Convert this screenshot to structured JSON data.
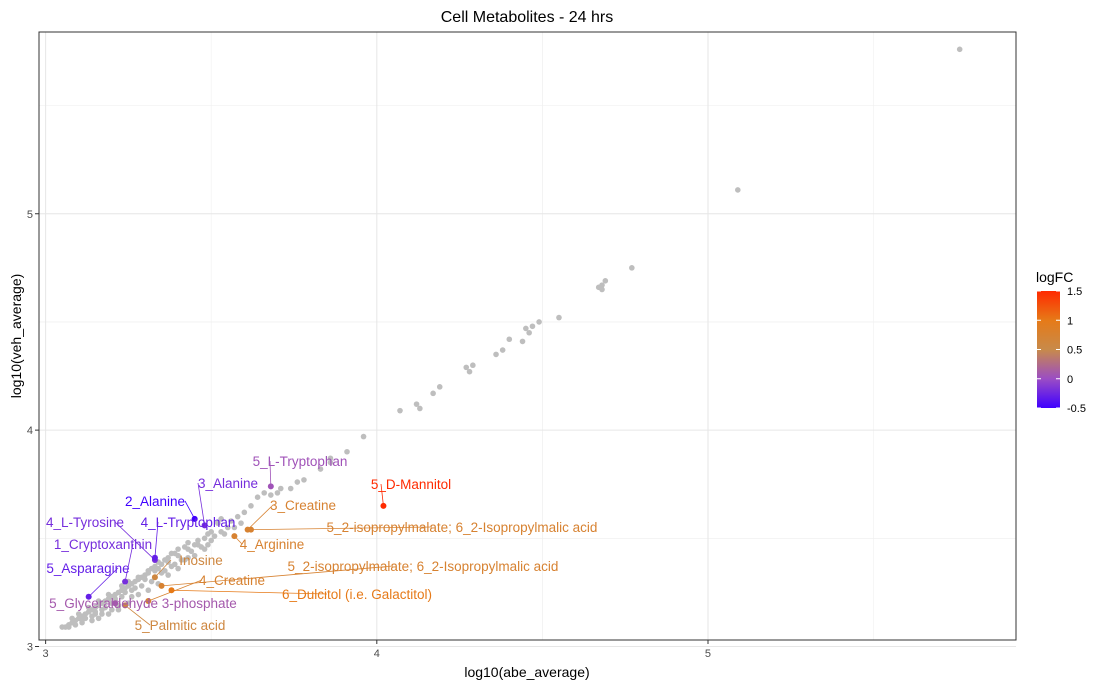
{
  "chart_data": {
    "type": "scatter",
    "title": "Cell Metabolites - 24 hrs",
    "xlabel": "log10(abe_average)",
    "ylabel": "log10(veh_average)",
    "xlim": [
      2.98,
      5.93
    ],
    "ylim": [
      3.03,
      5.84
    ],
    "x_ticks": [
      3,
      4,
      5
    ],
    "y_ticks": [
      3,
      4,
      5
    ],
    "grid": true,
    "legend": {
      "title": "logFC",
      "position": "right",
      "min": -0.5,
      "max": 1.5,
      "ticks": [
        1.5,
        1,
        0.5,
        0,
        -0.5
      ],
      "colors": [
        "#3f00ff",
        "#9b4dc4",
        "#c88a4a",
        "#e67a18",
        "#ff2a00"
      ]
    },
    "background_points_color": "#bebebe",
    "background_points": [
      [
        5.76,
        5.76
      ],
      [
        5.09,
        5.11
      ],
      [
        4.77,
        4.75
      ],
      [
        4.69,
        4.69
      ],
      [
        4.68,
        4.67
      ],
      [
        4.67,
        4.66
      ],
      [
        4.68,
        4.65
      ],
      [
        4.55,
        4.52
      ],
      [
        4.49,
        4.5
      ],
      [
        4.47,
        4.48
      ],
      [
        4.45,
        4.47
      ],
      [
        4.46,
        4.45
      ],
      [
        4.44,
        4.41
      ],
      [
        4.4,
        4.42
      ],
      [
        4.38,
        4.37
      ],
      [
        4.36,
        4.35
      ],
      [
        4.29,
        4.3
      ],
      [
        4.27,
        4.29
      ],
      [
        4.28,
        4.27
      ],
      [
        4.19,
        4.2
      ],
      [
        4.17,
        4.17
      ],
      [
        4.12,
        4.12
      ],
      [
        4.13,
        4.1
      ],
      [
        4.07,
        4.09
      ],
      [
        3.96,
        3.97
      ],
      [
        3.91,
        3.9
      ],
      [
        3.86,
        3.87
      ],
      [
        3.86,
        3.85
      ],
      [
        3.83,
        3.82
      ],
      [
        3.78,
        3.77
      ],
      [
        3.76,
        3.76
      ],
      [
        3.74,
        3.73
      ],
      [
        3.71,
        3.73
      ],
      [
        3.7,
        3.71
      ],
      [
        3.68,
        3.7
      ],
      [
        3.66,
        3.71
      ],
      [
        3.64,
        3.69
      ],
      [
        3.62,
        3.65
      ],
      [
        3.6,
        3.62
      ],
      [
        3.58,
        3.6
      ],
      [
        3.56,
        3.58
      ],
      [
        3.53,
        3.59
      ],
      [
        3.52,
        3.57
      ],
      [
        3.5,
        3.53
      ],
      [
        3.49,
        3.52
      ],
      [
        3.48,
        3.5
      ],
      [
        3.46,
        3.49
      ],
      [
        3.45,
        3.47
      ],
      [
        3.43,
        3.48
      ],
      [
        3.42,
        3.46
      ],
      [
        3.4,
        3.45
      ],
      [
        3.39,
        3.43
      ],
      [
        3.38,
        3.43
      ],
      [
        3.37,
        3.41
      ],
      [
        3.36,
        3.4
      ],
      [
        3.35,
        3.38
      ],
      [
        3.34,
        3.39
      ],
      [
        3.33,
        3.37
      ],
      [
        3.32,
        3.36
      ],
      [
        3.31,
        3.35
      ],
      [
        3.3,
        3.33
      ],
      [
        3.29,
        3.32
      ],
      [
        3.28,
        3.31
      ],
      [
        3.27,
        3.3
      ],
      [
        3.26,
        3.29
      ],
      [
        3.25,
        3.28
      ],
      [
        3.24,
        3.27
      ],
      [
        3.23,
        3.26
      ],
      [
        3.22,
        3.25
      ],
      [
        3.21,
        3.24
      ],
      [
        3.2,
        3.23
      ],
      [
        3.19,
        3.22
      ],
      [
        3.18,
        3.21
      ],
      [
        3.17,
        3.2
      ],
      [
        3.16,
        3.19
      ],
      [
        3.15,
        3.18
      ],
      [
        3.14,
        3.17
      ],
      [
        3.13,
        3.16
      ],
      [
        3.12,
        3.15
      ],
      [
        3.11,
        3.14
      ],
      [
        3.1,
        3.13
      ],
      [
        3.09,
        3.12
      ],
      [
        3.08,
        3.11
      ],
      [
        3.07,
        3.1
      ],
      [
        3.06,
        3.09
      ],
      [
        3.33,
        3.35
      ],
      [
        3.3,
        3.31
      ],
      [
        3.27,
        3.27
      ],
      [
        3.24,
        3.25
      ],
      [
        3.21,
        3.22
      ],
      [
        3.18,
        3.18
      ],
      [
        3.15,
        3.16
      ],
      [
        3.12,
        3.13
      ],
      [
        3.2,
        3.17
      ],
      [
        3.17,
        3.15
      ],
      [
        3.14,
        3.14
      ],
      [
        3.11,
        3.12
      ],
      [
        3.22,
        3.19
      ],
      [
        3.26,
        3.23
      ],
      [
        3.29,
        3.28
      ],
      [
        3.32,
        3.3
      ],
      [
        3.35,
        3.34
      ],
      [
        3.38,
        3.37
      ],
      [
        3.41,
        3.4
      ],
      [
        3.44,
        3.44
      ],
      [
        3.47,
        3.46
      ],
      [
        3.5,
        3.49
      ],
      [
        3.53,
        3.53
      ],
      [
        3.46,
        3.47
      ],
      [
        3.43,
        3.45
      ],
      [
        3.4,
        3.42
      ],
      [
        3.37,
        3.39
      ],
      [
        3.34,
        3.36
      ],
      [
        3.31,
        3.34
      ],
      [
        3.28,
        3.32
      ],
      [
        3.25,
        3.3
      ],
      [
        3.23,
        3.28
      ],
      [
        3.19,
        3.24
      ],
      [
        3.16,
        3.21
      ],
      [
        3.13,
        3.18
      ],
      [
        3.1,
        3.15
      ],
      [
        3.08,
        3.13
      ],
      [
        3.09,
        3.1
      ],
      [
        3.07,
        3.09
      ],
      [
        3.05,
        3.09
      ],
      [
        3.11,
        3.11
      ],
      [
        3.14,
        3.12
      ],
      [
        3.16,
        3.13
      ],
      [
        3.19,
        3.15
      ],
      [
        3.22,
        3.17
      ],
      [
        3.25,
        3.2
      ],
      [
        3.28,
        3.24
      ],
      [
        3.31,
        3.26
      ],
      [
        3.34,
        3.29
      ],
      [
        3.37,
        3.33
      ],
      [
        3.4,
        3.36
      ],
      [
        3.43,
        3.41
      ],
      [
        3.57,
        3.55
      ],
      [
        3.59,
        3.57
      ],
      [
        3.55,
        3.55
      ],
      [
        3.54,
        3.52
      ],
      [
        3.51,
        3.51
      ],
      [
        3.49,
        3.47
      ],
      [
        3.48,
        3.45
      ],
      [
        3.45,
        3.42
      ],
      [
        3.36,
        3.35
      ],
      [
        3.39,
        3.38
      ],
      [
        3.42,
        3.4
      ],
      [
        3.26,
        3.26
      ],
      [
        3.23,
        3.23
      ],
      [
        3.2,
        3.2
      ],
      [
        3.17,
        3.17
      ],
      [
        3.15,
        3.15
      ]
    ],
    "highlighted": [
      {
        "label": "5_L-Tryptophan",
        "x": 3.68,
        "y": 3.74,
        "logFC": 0.05
      },
      {
        "label": "3_Alanine",
        "x": 3.48,
        "y": 3.56,
        "logFC": -0.2
      },
      {
        "label": "2_Alanine",
        "x": 3.45,
        "y": 3.59,
        "logFC": -0.5
      },
      {
        "label": "5_D-Mannitol",
        "x": 4.02,
        "y": 3.65,
        "logFC": 1.5
      },
      {
        "label": "3_Creatine",
        "x": 3.61,
        "y": 3.54,
        "logFC": 0.75
      },
      {
        "label": "5_2-isopropylmalate; 6_2-Isopropylmalic acid",
        "x": 3.62,
        "y": 3.54,
        "logFC": 0.75
      },
      {
        "label": "4_Arginine",
        "x": 3.57,
        "y": 3.51,
        "logFC": 0.75
      },
      {
        "label": "4_L-Tyrosine",
        "x": 3.33,
        "y": 3.4,
        "logFC": -0.2
      },
      {
        "label": "4_L-Tryptophan",
        "x": 3.33,
        "y": 3.41,
        "logFC": -0.3
      },
      {
        "label": "1_Cryptoxanthin",
        "x": 3.24,
        "y": 3.3,
        "logFC": -0.2
      },
      {
        "label": "Inosine",
        "x": 3.33,
        "y": 3.32,
        "logFC": 0.6
      },
      {
        "label": "5_2-isopropylmalate; 6_2-Isopropylmalic acid",
        "x": 3.35,
        "y": 3.28,
        "logFC": 0.75
      },
      {
        "label": "5_Asparagine",
        "x": 3.13,
        "y": 3.23,
        "logFC": -0.3
      },
      {
        "label": "4_Creatine",
        "x": 3.31,
        "y": 3.21,
        "logFC": 0.75
      },
      {
        "label": "6_Dulcitol (i.e. Galactitol)",
        "x": 3.38,
        "y": 3.26,
        "logFC": 1.0
      },
      {
        "label": "5_Glyceraldehyde 3-phosphate",
        "x": 3.21,
        "y": 3.2,
        "logFC": 0.1
      },
      {
        "label": "5_Palmitic acid",
        "x": 3.24,
        "y": 3.19,
        "logFC": 0.6
      }
    ]
  }
}
